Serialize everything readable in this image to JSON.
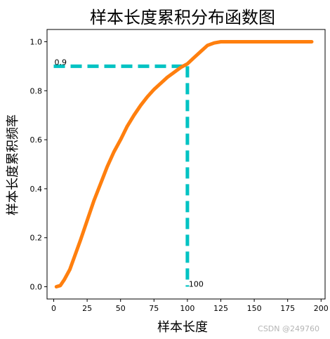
{
  "chart_data": {
    "type": "line",
    "title": "样本长度累积分布函数图",
    "xlabel": "样本长度",
    "ylabel": "样本长度累积频率",
    "xlim": [
      -5,
      203
    ],
    "ylim": [
      -0.05,
      1.05
    ],
    "xticks": [
      0,
      25,
      50,
      75,
      100,
      125,
      150,
      175,
      200
    ],
    "yticks": [
      0.0,
      0.2,
      0.4,
      0.6,
      0.8,
      1.0
    ],
    "xtick_labels": [
      "0",
      "25",
      "50",
      "75",
      "100",
      "125",
      "150",
      "175",
      "200"
    ],
    "ytick_labels": [
      "0.0",
      "0.2",
      "0.4",
      "0.6",
      "0.8",
      "1.0"
    ],
    "grid": false,
    "series": [
      {
        "color": "#ff7f0e",
        "x": [
          2,
          5,
          8,
          12,
          16,
          20,
          25,
          30,
          35,
          40,
          45,
          50,
          55,
          60,
          65,
          70,
          75,
          80,
          85,
          90,
          95,
          100,
          105,
          110,
          115,
          120,
          125,
          130,
          140,
          150,
          160,
          170,
          180,
          193
        ],
        "y": [
          0.0,
          0.005,
          0.03,
          0.07,
          0.13,
          0.19,
          0.27,
          0.35,
          0.42,
          0.49,
          0.55,
          0.6,
          0.655,
          0.7,
          0.74,
          0.775,
          0.805,
          0.83,
          0.855,
          0.875,
          0.895,
          0.91,
          0.935,
          0.96,
          0.985,
          0.995,
          1.0,
          1.0,
          1.0,
          1.0,
          1.0,
          1.0,
          1.0,
          1.0
        ]
      }
    ],
    "reference_lines": {
      "color": "#00c3c3",
      "x": 100,
      "y": 0.9,
      "x_label": "100",
      "y_label": "0.9"
    }
  },
  "watermark": "CSDN @249760"
}
